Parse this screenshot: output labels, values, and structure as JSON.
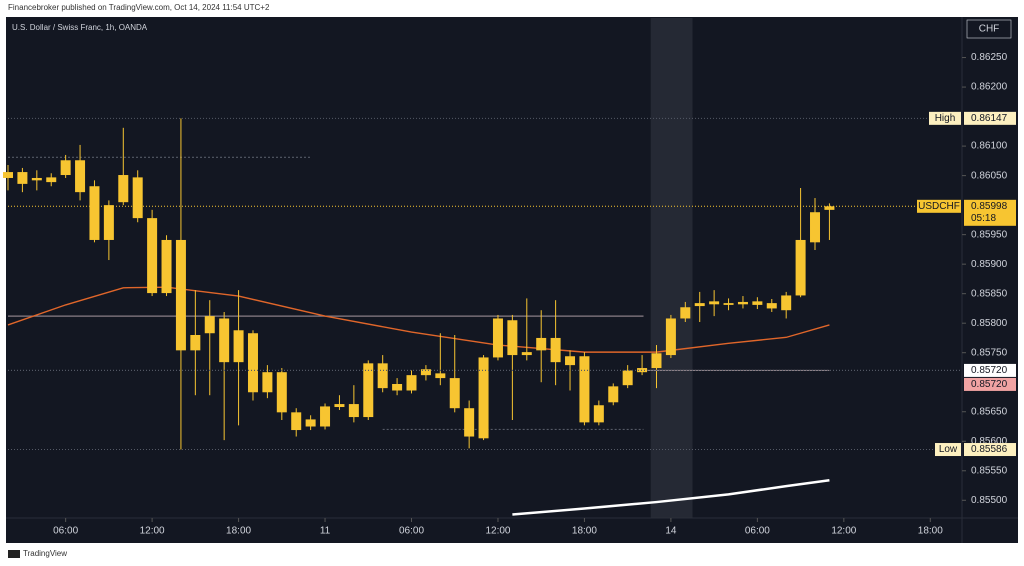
{
  "header": "Financebroker published on TradingView.com, Oct 14, 2024 11:54 UTC+2",
  "footer": "TradingView",
  "chart_data": {
    "type": "candlestick",
    "title": "U.S. Dollar / Swiss Franc, 1h, OANDA",
    "currency": "CHF",
    "color": "#f7c531",
    "x": [
      2,
      3,
      4,
      5,
      6,
      7,
      8,
      9,
      10,
      11,
      12,
      13,
      14,
      15,
      16,
      17,
      18,
      19,
      20,
      21,
      22,
      23,
      24,
      25,
      26,
      27,
      28,
      29,
      30,
      31,
      32,
      33,
      34,
      35,
      36,
      37,
      38,
      39,
      40,
      41,
      42,
      43,
      44,
      45,
      46,
      47,
      48,
      49,
      50,
      51,
      52,
      53,
      54,
      55,
      56,
      57,
      58,
      59
    ],
    "open": [
      0.86046,
      0.86036,
      0.86042,
      0.86039,
      0.86051,
      0.86076,
      0.86032,
      0.86,
      0.86005,
      0.86047,
      0.85978,
      0.85851,
      0.85941,
      0.85754,
      0.85783,
      0.85808,
      0.85734,
      0.85783,
      0.85683,
      0.85717,
      0.85649,
      0.85625,
      0.85625,
      0.85658,
      0.85663,
      0.85641,
      0.85732,
      0.85686,
      0.85686,
      0.85712,
      0.85715,
      0.85707,
      0.85656,
      0.85605,
      0.85742,
      0.85805,
      0.85751,
      0.85754,
      0.85775,
      0.85729,
      0.85744,
      0.85632,
      0.85666,
      0.85695,
      0.85717,
      0.85724,
      0.85746,
      0.85808,
      0.85829,
      0.85832,
      0.85831,
      0.85836,
      0.85831,
      0.85834,
      0.85822,
      0.85847,
      0.85937,
      0.85992
    ],
    "high": [
      0.86068,
      0.86063,
      0.86059,
      0.86054,
      0.86085,
      0.86102,
      0.86042,
      0.86008,
      0.86131,
      0.86059,
      0.85992,
      0.85949,
      0.86147,
      0.85856,
      0.85839,
      0.85819,
      0.85856,
      0.85788,
      0.85729,
      0.85724,
      0.85656,
      0.85644,
      0.85664,
      0.85678,
      0.85695,
      0.85737,
      0.85746,
      0.85707,
      0.8572,
      0.85729,
      0.85783,
      0.8578,
      0.85669,
      0.85746,
      0.85814,
      0.85814,
      0.85842,
      0.85822,
      0.85839,
      0.85754,
      0.85751,
      0.85669,
      0.85698,
      0.85729,
      0.85746,
      0.85763,
      0.85814,
      0.85836,
      0.85853,
      0.85856,
      0.85842,
      0.85846,
      0.85844,
      0.85841,
      0.85853,
      0.86029,
      0.86012,
      0.86003
    ],
    "low": [
      0.86025,
      0.86022,
      0.86025,
      0.86032,
      0.86046,
      0.86008,
      0.85937,
      0.85907,
      0.86,
      0.85971,
      0.85846,
      0.85846,
      0.85586,
      0.85678,
      0.85678,
      0.85602,
      0.85627,
      0.85669,
      0.85673,
      0.85636,
      0.85608,
      0.85619,
      0.8562,
      0.85653,
      0.85632,
      0.85636,
      0.85683,
      0.85678,
      0.85681,
      0.85703,
      0.85695,
      0.85649,
      0.85588,
      0.85602,
      0.85737,
      0.85636,
      0.85737,
      0.857,
      0.85695,
      0.85686,
      0.85627,
      0.85627,
      0.85661,
      0.8569,
      0.85712,
      0.8569,
      0.85741,
      0.85802,
      0.85802,
      0.85812,
      0.85822,
      0.85825,
      0.85824,
      0.85819,
      0.85808,
      0.85844,
      0.85924,
      0.85941
    ],
    "close": [
      0.86056,
      0.86056,
      0.86046,
      0.86047,
      0.86076,
      0.86022,
      0.85941,
      0.85941,
      0.86051,
      0.85978,
      0.85851,
      0.85941,
      0.85754,
      0.8578,
      0.85812,
      0.85734,
      0.85788,
      0.85683,
      0.85717,
      0.85649,
      0.85619,
      0.85637,
      0.85659,
      0.85663,
      0.85641,
      0.85732,
      0.8569,
      0.85697,
      0.85712,
      0.85722,
      0.85707,
      0.85656,
      0.85608,
      0.85742,
      0.85808,
      0.85746,
      0.85746,
      0.85775,
      0.85734,
      0.85744,
      0.85632,
      0.85661,
      0.85693,
      0.8572,
      0.85724,
      0.85749,
      0.85808,
      0.85827,
      0.85834,
      0.85837,
      0.85834,
      0.85832,
      0.85837,
      0.85825,
      0.85847,
      0.85941,
      0.85988,
      0.85998
    ],
    "series": [
      {
        "color": "#e0662a",
        "x": [
          2,
          6,
          10,
          13,
          18,
          24,
          30,
          36,
          42,
          47,
          52,
          56,
          59
        ],
        "values": [
          0.85797,
          0.85831,
          0.8586,
          0.85861,
          0.85846,
          0.85812,
          0.85785,
          0.85763,
          0.85751,
          0.85751,
          0.85766,
          0.85776,
          0.85797
        ]
      },
      {
        "color": "#ffffff",
        "x": [
          37,
          42,
          47,
          52,
          56,
          59
        ],
        "values": [
          0.85476,
          0.85486,
          0.85497,
          0.8551,
          0.85524,
          0.85534
        ]
      }
    ],
    "levels": [
      {
        "value": 0.86081,
        "from": 2,
        "to": 23
      },
      {
        "value": 0.85812,
        "from": 2,
        "to": 46.1
      },
      {
        "value": 0.8572,
        "from": 46.1,
        "to": 59
      },
      {
        "value": 0.8562,
        "from": 28,
        "to": 46.1
      }
    ],
    "session_band": [
      46.6,
      49.5
    ],
    "price_labels": [
      {
        "tag": "High",
        "value": 0.86147,
        "label": "0.86147",
        "bg": "#fdf0c0"
      },
      {
        "tag": "USDCHF",
        "value": 0.85998,
        "label": "0.85998",
        "countdown": "05:18",
        "bg": "#f7c531"
      },
      {
        "value": 0.8572,
        "label": "0.85720",
        "bg": "#ffffff"
      },
      {
        "value": 0.8572,
        "label": "0.85720",
        "bg": "#f1a3a3"
      },
      {
        "tag": "Low",
        "value": 0.85586,
        "label": "0.85586",
        "bg": "#fdf0c0"
      }
    ],
    "xlim": [
      2,
      68.2
    ],
    "xticks": [
      {
        "value": 6,
        "label": "06:00"
      },
      {
        "value": 12,
        "label": "12:00"
      },
      {
        "value": 18,
        "label": "18:00"
      },
      {
        "value": 24,
        "label": "11"
      },
      {
        "value": 30,
        "label": "06:00"
      },
      {
        "value": 36,
        "label": "12:00"
      },
      {
        "value": 42,
        "label": "18:00"
      },
      {
        "value": 48,
        "label": "14"
      },
      {
        "value": 54,
        "label": "06:00"
      },
      {
        "value": 60,
        "label": "12:00"
      },
      {
        "value": 66,
        "label": "18:00"
      }
    ],
    "ylim": [
      0.8547,
      0.86317
    ],
    "yticks": [
      {
        "value": 0.8625,
        "label": "0.86250"
      },
      {
        "value": 0.862,
        "label": "0.86200"
      },
      {
        "value": 0.861,
        "label": "0.86100"
      },
      {
        "value": 0.8605,
        "label": "0.86050"
      },
      {
        "value": 0.8595,
        "label": "0.85950"
      },
      {
        "value": 0.859,
        "label": "0.85900"
      },
      {
        "value": 0.8585,
        "label": "0.85850"
      },
      {
        "value": 0.858,
        "label": "0.85800"
      },
      {
        "value": 0.8575,
        "label": "0.85750"
      },
      {
        "value": 0.8565,
        "label": "0.85650"
      },
      {
        "value": 0.856,
        "label": "0.85600"
      },
      {
        "value": 0.8555,
        "label": "0.85550"
      },
      {
        "value": 0.855,
        "label": "0.85500"
      }
    ]
  }
}
